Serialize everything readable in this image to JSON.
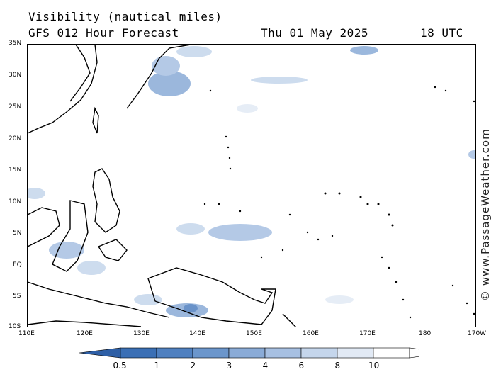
{
  "header": {
    "title": "Visibility (nautical miles)",
    "model": "GFS 012 Hour Forecast",
    "date": "Thu 01 May 2025",
    "time": "18 UTC"
  },
  "map": {
    "lat_labels": [
      "35N",
      "30N",
      "25N",
      "20N",
      "15N",
      "10N",
      "5N",
      "EQ",
      "5S",
      "10S"
    ],
    "lon_labels": [
      "110E",
      "120E",
      "130E",
      "140E",
      "150E",
      "160E",
      "170E",
      "180",
      "170W"
    ],
    "extent": {
      "lon_min": 110,
      "lon_max": 187,
      "lat_min": -10,
      "lat_max": 35
    }
  },
  "watermark": "© www.PassageWeather.com",
  "legend": {
    "labels": [
      "0.5",
      "1",
      "2",
      "3",
      "4",
      "6",
      "8",
      "10"
    ],
    "colors": [
      "#3a6fb5",
      "#4f80c0",
      "#6b96cc",
      "#8aabd7",
      "#a7c0e2",
      "#c5d6ec",
      "#e2eaf5",
      "#ffffff"
    ]
  }
}
